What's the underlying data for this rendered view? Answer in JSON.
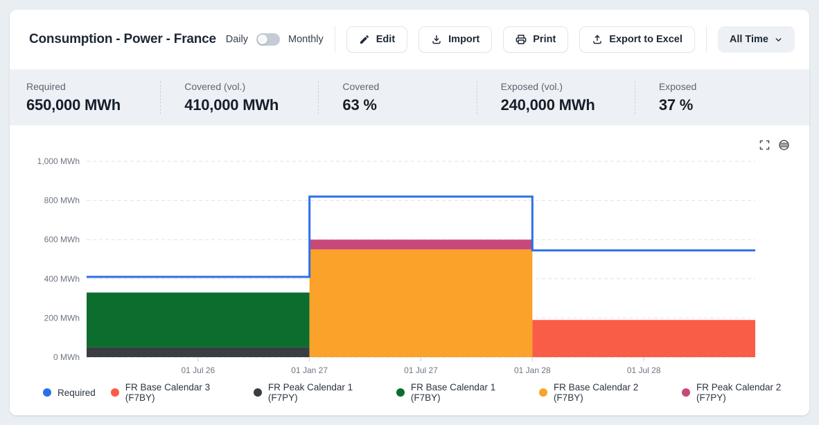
{
  "header": {
    "title": "Consumption - Power - France",
    "toggle": {
      "left_label": "Daily",
      "right_label": "Monthly",
      "state": "left"
    },
    "edit_label": "Edit",
    "import_label": "Import",
    "print_label": "Print",
    "export_label": "Export to Excel",
    "range_label": "All Time",
    "icons": {
      "edit": "pencil-icon",
      "import": "download-icon",
      "print": "printer-icon",
      "export": "upload-icon",
      "range": "chevron-down-icon"
    }
  },
  "stats": [
    {
      "label": "Required",
      "value": "650,000 MWh"
    },
    {
      "label": "Covered (vol.)",
      "value": "410,000 MWh"
    },
    {
      "label": "Covered",
      "value": "63 %"
    },
    {
      "label": "Exposed (vol.)",
      "value": "240,000 MWh"
    },
    {
      "label": "Exposed",
      "value": "37 %"
    }
  ],
  "chart_tools": {
    "expand": "fullscreen-icon",
    "menu": "chart-menu-icon"
  },
  "chart_data": {
    "type": "area",
    "title": "",
    "xlabel": "",
    "ylabel": "MWh",
    "grid": "dashed-horizontal",
    "legend_position": "bottom",
    "ylim": [
      0,
      1000
    ],
    "xlim": [
      2026.0,
      2029.0
    ],
    "y_ticks": [
      {
        "value": 0,
        "label": "0 MWh"
      },
      {
        "value": 200,
        "label": "200 MWh"
      },
      {
        "value": 400,
        "label": "400 MWh"
      },
      {
        "value": 600,
        "label": "600 MWh"
      },
      {
        "value": 800,
        "label": "800 MWh"
      },
      {
        "value": 1000,
        "label": "1,000 MWh"
      }
    ],
    "x_ticks": [
      {
        "pos": 2026.5,
        "label": "01 Jul 26"
      },
      {
        "pos": 2027.0,
        "label": "01 Jan 27"
      },
      {
        "pos": 2027.5,
        "label": "01 Jul 27"
      },
      {
        "pos": 2028.0,
        "label": "01 Jan 28"
      },
      {
        "pos": 2028.5,
        "label": "01 Jul 28"
      }
    ],
    "series_colors": {
      "Required": "#2b70e8",
      "FR Base Calendar 3 (F7BY)": "#f95d48",
      "FR Peak Calendar 1 (F7PY)": "#3a3d41",
      "FR Base Calendar 1 (F7BY)": "#0c6d2e",
      "FR Base Calendar 2 (F7BY)": "#fba22a",
      "FR Peak Calendar 2 (F7PY)": "#c7497a"
    },
    "required_line": {
      "name": "Required",
      "steps": [
        {
          "x0": 2026.0,
          "x1": 2027.0,
          "value": 410
        },
        {
          "x0": 2027.0,
          "x1": 2028.0,
          "value": 820
        },
        {
          "x0": 2028.0,
          "x1": 2029.0,
          "value": 545
        }
      ]
    },
    "stacked_segments": [
      {
        "x0": 2026.0,
        "x1": 2027.0,
        "stack": [
          {
            "name": "FR Peak Calendar 1 (F7PY)",
            "value": 50
          },
          {
            "name": "FR Base Calendar 1 (F7BY)",
            "value": 280
          }
        ]
      },
      {
        "x0": 2027.0,
        "x1": 2028.0,
        "stack": [
          {
            "name": "FR Base Calendar 2 (F7BY)",
            "value": 550
          },
          {
            "name": "FR Peak Calendar 2 (F7PY)",
            "value": 50
          }
        ]
      },
      {
        "x0": 2028.0,
        "x1": 2029.0,
        "stack": [
          {
            "name": "FR Base Calendar 3 (F7BY)",
            "value": 190
          }
        ]
      }
    ],
    "legend": [
      {
        "label": "Required",
        "color": "#2b70e8"
      },
      {
        "label": "FR Base Calendar 3 (F7BY)",
        "color": "#f95d48"
      },
      {
        "label": "FR Peak Calendar 1 (F7PY)",
        "color": "#3a3d41"
      },
      {
        "label": "FR Base Calendar 1 (F7BY)",
        "color": "#0c6d2e"
      },
      {
        "label": "FR Base Calendar 2 (F7BY)",
        "color": "#fba22a"
      },
      {
        "label": "FR Peak Calendar 2 (F7PY)",
        "color": "#c7497a"
      }
    ]
  }
}
